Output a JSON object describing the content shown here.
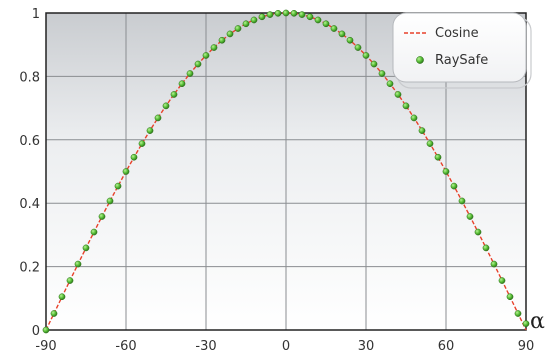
{
  "chart_data": {
    "type": "scatter",
    "title": "",
    "xlabel": "α",
    "ylabel": "",
    "xlim": [
      -90,
      90
    ],
    "ylim": [
      0,
      1
    ],
    "xticks": [
      -90,
      -60,
      -30,
      0,
      30,
      60,
      90
    ],
    "yticks": [
      0,
      0.2,
      0.4,
      0.6,
      0.8,
      1
    ],
    "xtick_labels": [
      "-90",
      "-60",
      "-30",
      "0",
      "30",
      "60",
      "90"
    ],
    "ytick_labels": [
      "0",
      "0.2",
      "0.4",
      "0.6",
      "0.8",
      "1"
    ],
    "grid": true,
    "legend_position": "top-right",
    "series": [
      {
        "name": "Cosine",
        "kind": "dashed-line",
        "color": "#e8402a",
        "function": "cos(alpha)",
        "x_range": [
          -90,
          90
        ]
      },
      {
        "name": "RaySafe",
        "kind": "markers",
        "color": "#5cc23a",
        "x": [
          -90,
          -87,
          -84,
          -81,
          -78,
          -75,
          -72,
          -69,
          -66,
          -63,
          -60,
          -57,
          -54,
          -51,
          -48,
          -45,
          -42,
          -39,
          -36,
          -33,
          -30,
          -27,
          -24,
          -21,
          -18,
          -15,
          -12,
          -9,
          -6,
          -3,
          0,
          3,
          6,
          9,
          12,
          15,
          18,
          21,
          24,
          27,
          30,
          33,
          36,
          39,
          42,
          45,
          48,
          51,
          54,
          57,
          60,
          63,
          66,
          69,
          72,
          75,
          78,
          81,
          84,
          87,
          90
        ],
        "y": [
          0.0,
          0.052,
          0.105,
          0.156,
          0.208,
          0.259,
          0.309,
          0.358,
          0.407,
          0.454,
          0.5,
          0.545,
          0.588,
          0.629,
          0.669,
          0.707,
          0.743,
          0.777,
          0.809,
          0.839,
          0.866,
          0.891,
          0.914,
          0.934,
          0.951,
          0.966,
          0.978,
          0.988,
          0.995,
          0.999,
          1.0,
          0.999,
          0.995,
          0.988,
          0.978,
          0.966,
          0.951,
          0.934,
          0.914,
          0.891,
          0.866,
          0.839,
          0.809,
          0.777,
          0.743,
          0.707,
          0.669,
          0.629,
          0.588,
          0.545,
          0.5,
          0.454,
          0.407,
          0.358,
          0.309,
          0.259,
          0.208,
          0.156,
          0.105,
          0.052,
          0.02
        ]
      }
    ]
  }
}
